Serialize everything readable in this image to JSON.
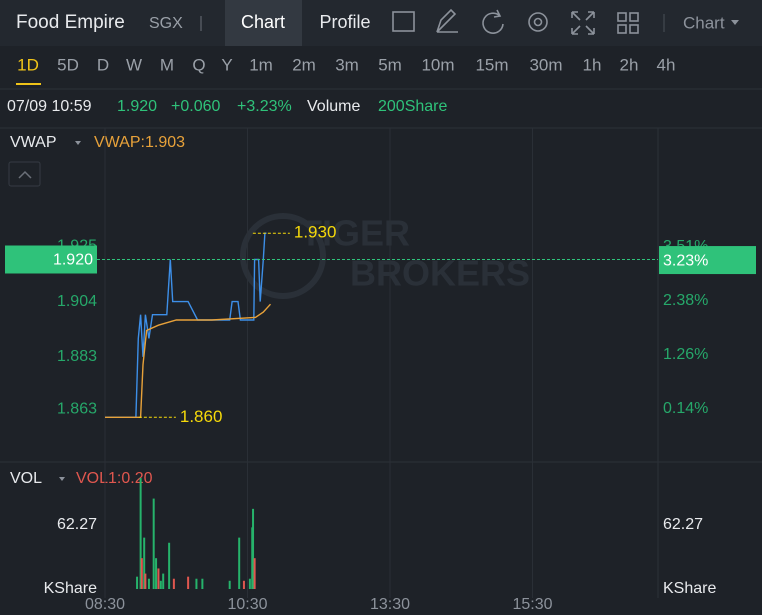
{
  "header": {
    "title": "Food Empire",
    "exchange": "SGX",
    "tabs": [
      "Chart",
      "Profile"
    ],
    "menu": "Chart"
  },
  "periods": [
    "1D",
    "5D",
    "D",
    "W",
    "M",
    "Q",
    "Y",
    "1m",
    "2m",
    "3m",
    "5m",
    "10m",
    "15m",
    "30m",
    "1h",
    "2h",
    "4h"
  ],
  "quote": {
    "time": "07/09 10:59",
    "price": "1.920",
    "change": "+0.060",
    "change_pct": "+3.23%",
    "volume_label": "Volume",
    "volume": "200Share"
  },
  "watermark": [
    "TIGER",
    "BROKERS"
  ],
  "chart_data": [
    {
      "type": "line",
      "indicator": "VWAP",
      "indicator_value": "VWAP:1.903",
      "ylim": [
        1.843,
        1.97
      ],
      "yticks": [
        1.863,
        1.883,
        1.904,
        1.925
      ],
      "y2lim": [
        -0.96,
        5.97
      ],
      "y2ticks": [
        {
          "value": 0.14,
          "label": "0.14%"
        },
        {
          "value": 1.26,
          "label": "1.26%"
        },
        {
          "value": 2.38,
          "label": "2.38%"
        },
        {
          "value": 3.51,
          "label": "3.51%"
        }
      ],
      "last_price": 1.92,
      "last_price_label": "1.920",
      "last_percent": 3.23,
      "last_percent_label": "3.23%",
      "annotations": [
        {
          "x": "10:33",
          "value": 1.93,
          "label": "1.930"
        },
        {
          "x": "08:56",
          "value": 1.86,
          "label": "1.860"
        }
      ],
      "series": [
        {
          "color": "#3d8fe8",
          "x": [
            "08:30",
            "08:56",
            "08:58",
            "09:00",
            "09:02",
            "09:04",
            "09:07",
            "09:10",
            "09:22",
            "09:25",
            "09:27",
            "09:40",
            "09:48",
            "10:15",
            "10:17",
            "10:22",
            "10:24",
            "10:38",
            "10:39",
            "10:44",
            "10:46",
            "10:50",
            "10:52",
            "10:54"
          ],
          "values": [
            1.86,
            1.86,
            1.89,
            1.899,
            1.883,
            1.899,
            1.89,
            1.899,
            1.899,
            1.92,
            1.904,
            1.904,
            1.897,
            1.897,
            1.904,
            1.904,
            1.897,
            1.897,
            1.92,
            1.92,
            1.904,
            1.92,
            1.93,
            1.93
          ]
        },
        {
          "name": "VWAP",
          "color": "#e8a23a",
          "x": [
            "08:30",
            "09:00",
            "09:02",
            "09:05",
            "09:15",
            "09:30",
            "10:00",
            "10:40",
            "10:50",
            "10:56",
            "10:59"
          ],
          "values": [
            1.86,
            1.86,
            1.88,
            1.893,
            1.895,
            1.897,
            1.897,
            1.898,
            1.9,
            1.902,
            1.903
          ]
        }
      ]
    },
    {
      "type": "bar",
      "indicator": "VOL",
      "indicator_value": "VOL1:0.20",
      "xlim": [
        "08:30",
        "17:16"
      ],
      "xticks": [
        "08:30",
        "10:30",
        "13:30",
        "15:30"
      ],
      "ylim": [
        0,
        123.6
      ],
      "yticks": [
        {
          "value": 0,
          "label": "KShare"
        },
        62.27
      ],
      "x": [
        "08:57",
        "09:00",
        "09:01",
        "09:03",
        "09:04",
        "09:07",
        "09:11",
        "09:13",
        "09:15",
        "09:17",
        "09:19",
        "09:24",
        "09:28",
        "09:40",
        "09:47",
        "09:52",
        "10:15",
        "10:23",
        "10:27",
        "10:33",
        "10:36",
        "10:37",
        "10:39"
      ],
      "values": [
        12,
        108,
        30,
        50,
        15,
        10,
        88,
        30,
        20,
        8,
        15,
        45,
        10,
        12,
        10,
        10,
        8,
        50,
        8,
        10,
        60,
        78,
        30
      ],
      "bar_colors": [
        "#26b36b",
        "#26b36b",
        "#e0574f",
        "#26b36b",
        "#e0574f",
        "#26b36b",
        "#26b36b",
        "#26b36b",
        "#e0574f",
        "#26b36b",
        "#26b36b",
        "#26b36b",
        "#e0574f",
        "#e0574f",
        "#26b36b",
        "#26b36b",
        "#26b36b",
        "#26b36b",
        "#e0574f",
        "#26b36b",
        "#26b36b",
        "#26b36b",
        "#e0574f"
      ]
    }
  ]
}
